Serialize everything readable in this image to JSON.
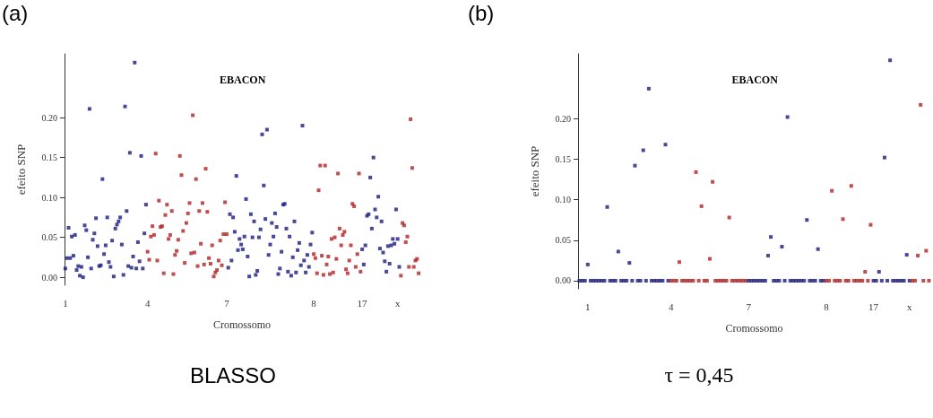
{
  "chart_data": [
    {
      "type": "scatter",
      "title": "EBACON",
      "xlabel": "Cromossomo",
      "ylabel": "efeito SNP",
      "annotations": [
        "(a)",
        "BLASSO"
      ],
      "marker": "square",
      "grid": false,
      "ylim": [
        -0.01,
        0.28
      ],
      "yticks": [
        {
          "value": 0,
          "label": "0.00"
        },
        {
          "value": 0.05,
          "label": "0.05"
        },
        {
          "value": 0.1,
          "label": "0.10"
        },
        {
          "value": 0.15,
          "label": "0.15"
        },
        {
          "value": 0.2,
          "label": "0.20"
        }
      ],
      "categories": [
        "1",
        null,
        null,
        null,
        null,
        null,
        null,
        null,
        null,
        null,
        null,
        null,
        null,
        null,
        null,
        null,
        null,
        null,
        null,
        null,
        null,
        null,
        null,
        null,
        null,
        null,
        null,
        null,
        null,
        null,
        null,
        null,
        null,
        null,
        null,
        null,
        null,
        null,
        null,
        null,
        null,
        null,
        null,
        null,
        null,
        null,
        null,
        null,
        null,
        null,
        null,
        "4",
        null,
        null,
        null,
        null,
        null,
        null,
        null,
        null,
        null,
        null,
        null,
        null,
        null,
        null,
        null,
        null,
        null,
        null,
        null,
        null,
        null,
        null,
        null,
        null,
        null,
        null,
        null,
        null,
        null,
        null,
        null,
        null,
        null,
        null,
        null,
        null,
        null,
        null,
        null,
        null,
        null,
        null,
        null,
        null,
        null,
        null,
        null,
        null,
        "7",
        null,
        null,
        null,
        null,
        null,
        null,
        null,
        null,
        null,
        null,
        null,
        null,
        null,
        null,
        null,
        null,
        null,
        null,
        null,
        null,
        null,
        null,
        null,
        null,
        null,
        null,
        null,
        null,
        null,
        null,
        null,
        null,
        null,
        null,
        null,
        null,
        null,
        null,
        null,
        null,
        null,
        null,
        null,
        null,
        null,
        null,
        null,
        null,
        null,
        null,
        null,
        null,
        null,
        "8",
        null,
        null,
        null,
        null,
        null,
        null,
        null,
        null,
        null,
        null,
        null,
        null,
        null,
        null,
        null,
        null,
        null,
        null,
        null,
        null,
        null,
        null,
        null,
        null,
        null,
        null,
        null,
        null,
        null,
        "17",
        null,
        null,
        null,
        null,
        null,
        null,
        null,
        null,
        null,
        null,
        null,
        null,
        null,
        null,
        null,
        null,
        null,
        null,
        null,
        null,
        null,
        "x",
        null,
        null,
        null,
        null,
        null,
        null,
        null,
        null,
        null,
        null,
        null,
        null,
        null
      ],
      "values": [
        0.011,
        0.024,
        0.062,
        0.024,
        0.051,
        0.027,
        0.053,
        0.009,
        0.014,
        0.002,
        0.013,
        0.0,
        0.065,
        0.059,
        0.025,
        0.211,
        0.011,
        0.047,
        0.055,
        0.074,
        0.039,
        0.014,
        0.015,
        0.123,
        0.029,
        0.04,
        0.075,
        0.019,
        0.013,
        0.046,
        0.001,
        0.061,
        0.066,
        0.07,
        0.075,
        0.041,
        0.003,
        0.214,
        0.083,
        0.014,
        0.156,
        0.012,
        0.026,
        0.269,
        0.011,
        0.044,
        0.02,
        0.152,
        0.011,
        0.055,
        0.091,
        0.032,
        0.022,
        0.051,
        0.064,
        0.053,
        0.155,
        0.021,
        0.096,
        0.063,
        0.064,
        0.005,
        0.078,
        0.091,
        0.048,
        0.053,
        0.083,
        0.004,
        0.028,
        0.033,
        0.047,
        0.152,
        0.128,
        0.058,
        0.018,
        0.068,
        0.08,
        0.093,
        0.03,
        0.203,
        0.031,
        0.123,
        0.014,
        0.083,
        0.042,
        0.093,
        0.016,
        0.136,
        0.082,
        0.024,
        0.017,
        0.04,
        0.001,
        0.006,
        0.009,
        0.021,
        0.046,
        0.015,
        0.054,
        0.094,
        0.054,
        0.012,
        0.079,
        0.021,
        0.075,
        0.057,
        0.127,
        0.034,
        0.048,
        0.041,
        0.035,
        0.051,
        0.098,
        0.026,
        0.001,
        0.079,
        0.05,
        0.07,
        0.003,
        0.008,
        0.05,
        0.06,
        0.179,
        0.115,
        0.073,
        0.185,
        0.028,
        0.041,
        0.068,
        0.051,
        0.08,
        0.063,
        0.004,
        0.011,
        0.032,
        0.091,
        0.092,
        0.061,
        0.007,
        0.051,
        0.002,
        0.025,
        0.07,
        0.006,
        0.034,
        0.043,
        0.015,
        0.19,
        0.021,
        0.006,
        0.028,
        0.013,
        0.041,
        0.056,
        0.029,
        0.024,
        0.005,
        0.109,
        0.14,
        0.027,
        0.003,
        0.14,
        0.016,
        0.026,
        0.004,
        0.048,
        0.006,
        0.05,
        0.023,
        0.13,
        0.061,
        0.04,
        0.053,
        0.057,
        0.01,
        0.005,
        0.021,
        0.04,
        0.092,
        0.089,
        0.013,
        0.029,
        0.13,
        0.007,
        0.035,
        0.016,
        0.04,
        0.077,
        0.079,
        0.125,
        0.061,
        0.15,
        0.085,
        0.075,
        0.101,
        0.036,
        0.07,
        0.031,
        0.02,
        0.007,
        0.039,
        0.017,
        0.04,
        0.048,
        0.042,
        0.085,
        0.048,
        0.013,
        0.002,
        0.068,
        0.065,
        0.044,
        0.051,
        0.013,
        0.198,
        0.137,
        0.013,
        0.021,
        0.023,
        0.005
      ],
      "colors": [
        "#1a1a80",
        "#1a1a80",
        "#1a1a80",
        "#1a1a80",
        "#1a1a80",
        "#1a1a80",
        "#1a1a80",
        "#1a1a80",
        "#1a1a80",
        "#1a1a80",
        "#1a1a80",
        "#1a1a80",
        "#1a1a80",
        "#1a1a80",
        "#1a1a80",
        "#1a1a80",
        "#1a1a80",
        "#1a1a80",
        "#1a1a80",
        "#1a1a80",
        "#1a1a80",
        "#1a1a80",
        "#1a1a80",
        "#1a1a80",
        "#1a1a80",
        "#1a1a80",
        "#1a1a80",
        "#1a1a80",
        "#1a1a80",
        "#1a1a80",
        "#1a1a80",
        "#1a1a80",
        "#1a1a80",
        "#1a1a80",
        "#1a1a80",
        "#1a1a80",
        "#1a1a80",
        "#1a1a80",
        "#1a1a80",
        "#1a1a80",
        "#1a1a80",
        "#1a1a80",
        "#1a1a80",
        "#1a1a80",
        "#1a1a80",
        "#1a1a80",
        "#1a1a80",
        "#1a1a80",
        "#1a1a80",
        "#1a1a80",
        "#1a1a80",
        "#b22222",
        "#b22222",
        "#b22222",
        "#b22222",
        "#b22222",
        "#b22222",
        "#b22222",
        "#b22222",
        "#b22222",
        "#b22222",
        "#b22222",
        "#b22222",
        "#b22222",
        "#b22222",
        "#b22222",
        "#b22222",
        "#b22222",
        "#b22222",
        "#b22222",
        "#b22222",
        "#b22222",
        "#b22222",
        "#b22222",
        "#b22222",
        "#b22222",
        "#b22222",
        "#b22222",
        "#b22222",
        "#b22222",
        "#b22222",
        "#b22222",
        "#b22222",
        "#b22222",
        "#b22222",
        "#b22222",
        "#b22222",
        "#b22222",
        "#b22222",
        "#b22222",
        "#b22222",
        "#b22222",
        "#b22222",
        "#b22222",
        "#b22222",
        "#b22222",
        "#b22222",
        "#b22222",
        "#b22222",
        "#b22222",
        "#b22222",
        "#1a1a80",
        "#1a1a80",
        "#1a1a80",
        "#1a1a80",
        "#1a1a80",
        "#1a1a80",
        "#1a1a80",
        "#1a1a80",
        "#1a1a80",
        "#1a1a80",
        "#1a1a80",
        "#1a1a80",
        "#1a1a80",
        "#1a1a80",
        "#1a1a80",
        "#1a1a80",
        "#1a1a80",
        "#1a1a80",
        "#1a1a80",
        "#1a1a80",
        "#1a1a80",
        "#1a1a80",
        "#1a1a80",
        "#1a1a80",
        "#1a1a80",
        "#1a1a80",
        "#1a1a80",
        "#1a1a80",
        "#1a1a80",
        "#1a1a80",
        "#1a1a80",
        "#1a1a80",
        "#1a1a80",
        "#1a1a80",
        "#1a1a80",
        "#1a1a80",
        "#1a1a80",
        "#1a1a80",
        "#1a1a80",
        "#1a1a80",
        "#1a1a80",
        "#1a1a80",
        "#1a1a80",
        "#1a1a80",
        "#1a1a80",
        "#1a1a80",
        "#1a1a80",
        "#1a1a80",
        "#1a1a80",
        "#1a1a80",
        "#1a1a80",
        "#1a1a80",
        "#1a1a80",
        "#b22222",
        "#b22222",
        "#b22222",
        "#b22222",
        "#b22222",
        "#b22222",
        "#b22222",
        "#b22222",
        "#b22222",
        "#b22222",
        "#b22222",
        "#b22222",
        "#b22222",
        "#b22222",
        "#b22222",
        "#b22222",
        "#b22222",
        "#b22222",
        "#b22222",
        "#b22222",
        "#b22222",
        "#b22222",
        "#b22222",
        "#b22222",
        "#b22222",
        "#b22222",
        "#b22222",
        "#b22222",
        "#b22222",
        "#b22222",
        "#1a1a80",
        "#1a1a80",
        "#1a1a80",
        "#1a1a80",
        "#1a1a80",
        "#1a1a80",
        "#1a1a80",
        "#1a1a80",
        "#1a1a80",
        "#1a1a80",
        "#1a1a80",
        "#1a1a80",
        "#1a1a80",
        "#1a1a80",
        "#1a1a80",
        "#1a1a80",
        "#1a1a80",
        "#1a1a80",
        "#1a1a80",
        "#1a1a80",
        "#1a1a80",
        "#1a1a80",
        "#1a1a80",
        "#1a1a80",
        "#b22222",
        "#b22222",
        "#b22222",
        "#b22222",
        "#b22222",
        "#b22222",
        "#b22222",
        "#b22222",
        "#b22222",
        "#b22222",
        "#b22222",
        "#b22222"
      ]
    },
    {
      "type": "scatter",
      "title": "EBACON",
      "xlabel": "Cromossomo",
      "ylabel": "efeito SNP",
      "annotations": [
        "(b)",
        "τ = 0,45"
      ],
      "marker": "square",
      "grid": false,
      "ylim": [
        -0.01,
        0.28
      ],
      "yticks": [
        {
          "value": 0,
          "label": "0.00"
        },
        {
          "value": 0.05,
          "label": "0.05"
        },
        {
          "value": 0.1,
          "label": "0.10"
        },
        {
          "value": 0.15,
          "label": "0.15"
        },
        {
          "value": 0.2,
          "label": "0.20"
        }
      ],
      "categories": [
        null,
        null,
        null,
        "1",
        null,
        null,
        null,
        null,
        null,
        null,
        null,
        null,
        null,
        null,
        null,
        null,
        null,
        null,
        null,
        null,
        null,
        null,
        null,
        null,
        null,
        null,
        null,
        null,
        null,
        null,
        null,
        null,
        null,
        "4",
        null,
        null,
        null,
        null,
        null,
        null,
        null,
        null,
        null,
        null,
        null,
        null,
        null,
        null,
        null,
        null,
        null,
        null,
        null,
        null,
        null,
        null,
        null,
        null,
        null,
        null,
        null,
        "7",
        null,
        null,
        null,
        null,
        null,
        null,
        null,
        null,
        null,
        null,
        null,
        null,
        null,
        null,
        null,
        null,
        null,
        null,
        null,
        null,
        null,
        null,
        null,
        null,
        null,
        null,
        null,
        "8",
        null,
        null,
        null,
        null,
        null,
        null,
        null,
        null,
        null,
        null,
        null,
        null,
        null,
        null,
        null,
        null,
        "17",
        null,
        null,
        null,
        null,
        null,
        null,
        null,
        null,
        null,
        null,
        null,
        null,
        "x",
        null,
        null,
        null,
        null,
        null,
        null,
        null
      ],
      "values": [
        0,
        0,
        0,
        0.02,
        0,
        0,
        0,
        0,
        0,
        0,
        0.091,
        0,
        0,
        0,
        0.036,
        0,
        0,
        0,
        0.022,
        0,
        0.142,
        0,
        0,
        0.161,
        0,
        0.237,
        0,
        0,
        0,
        0,
        0,
        0.168,
        0,
        0,
        0,
        0,
        0.023,
        0,
        0,
        0,
        0,
        0,
        0.134,
        0,
        0.092,
        0,
        0,
        0.027,
        0.122,
        0,
        0,
        0,
        0,
        0,
        0.078,
        0,
        0,
        0,
        0,
        0,
        0,
        0,
        0,
        0,
        0,
        0,
        0,
        0,
        0.031,
        0.054,
        0,
        0,
        0,
        0.042,
        0,
        0.202,
        0,
        0,
        0,
        0,
        0,
        0,
        0.075,
        0,
        0,
        0,
        0.039,
        0,
        0,
        0,
        0,
        0.111,
        0,
        0,
        0,
        0.076,
        0,
        0,
        0.117,
        0,
        0,
        0,
        0,
        0.011,
        0,
        0.069,
        0,
        0,
        0.011,
        0,
        0.152,
        0,
        0.272,
        0,
        0,
        0,
        0,
        0,
        0.032,
        0,
        0,
        0,
        0.031,
        0.217,
        0,
        0.037,
        0
      ],
      "colors": [
        "#1a1a80",
        "#1a1a80",
        "#1a1a80",
        "#1a1a80",
        "#1a1a80",
        "#1a1a80",
        "#1a1a80",
        "#1a1a80",
        "#1a1a80",
        "#1a1a80",
        "#1a1a80",
        "#1a1a80",
        "#1a1a80",
        "#1a1a80",
        "#1a1a80",
        "#1a1a80",
        "#1a1a80",
        "#1a1a80",
        "#1a1a80",
        "#1a1a80",
        "#1a1a80",
        "#1a1a80",
        "#1a1a80",
        "#1a1a80",
        "#1a1a80",
        "#1a1a80",
        "#1a1a80",
        "#1a1a80",
        "#1a1a80",
        "#1a1a80",
        "#1a1a80",
        "#1a1a80",
        "#1a1a80",
        "#b22222",
        "#b22222",
        "#b22222",
        "#b22222",
        "#b22222",
        "#b22222",
        "#b22222",
        "#b22222",
        "#b22222",
        "#b22222",
        "#b22222",
        "#b22222",
        "#b22222",
        "#b22222",
        "#b22222",
        "#b22222",
        "#b22222",
        "#b22222",
        "#b22222",
        "#b22222",
        "#b22222",
        "#b22222",
        "#b22222",
        "#b22222",
        "#b22222",
        "#b22222",
        "#b22222",
        "#b22222",
        "#1a1a80",
        "#1a1a80",
        "#1a1a80",
        "#1a1a80",
        "#1a1a80",
        "#1a1a80",
        "#1a1a80",
        "#1a1a80",
        "#1a1a80",
        "#1a1a80",
        "#1a1a80",
        "#1a1a80",
        "#1a1a80",
        "#1a1a80",
        "#1a1a80",
        "#1a1a80",
        "#1a1a80",
        "#1a1a80",
        "#1a1a80",
        "#1a1a80",
        "#1a1a80",
        "#1a1a80",
        "#1a1a80",
        "#1a1a80",
        "#1a1a80",
        "#1a1a80",
        "#1a1a80",
        "#1a1a80",
        "#b22222",
        "#b22222",
        "#b22222",
        "#b22222",
        "#b22222",
        "#b22222",
        "#b22222",
        "#b22222",
        "#b22222",
        "#b22222",
        "#b22222",
        "#b22222",
        "#b22222",
        "#b22222",
        "#b22222",
        "#b22222",
        "#b22222",
        "#1a1a80",
        "#1a1a80",
        "#1a1a80",
        "#1a1a80",
        "#1a1a80",
        "#1a1a80",
        "#1a1a80",
        "#1a1a80",
        "#1a1a80",
        "#1a1a80",
        "#1a1a80",
        "#1a1a80",
        "#1a1a80",
        "#1a1a80",
        "#b22222",
        "#b22222",
        "#b22222",
        "#b22222",
        "#b22222",
        "#b22222",
        "#b22222"
      ]
    }
  ]
}
